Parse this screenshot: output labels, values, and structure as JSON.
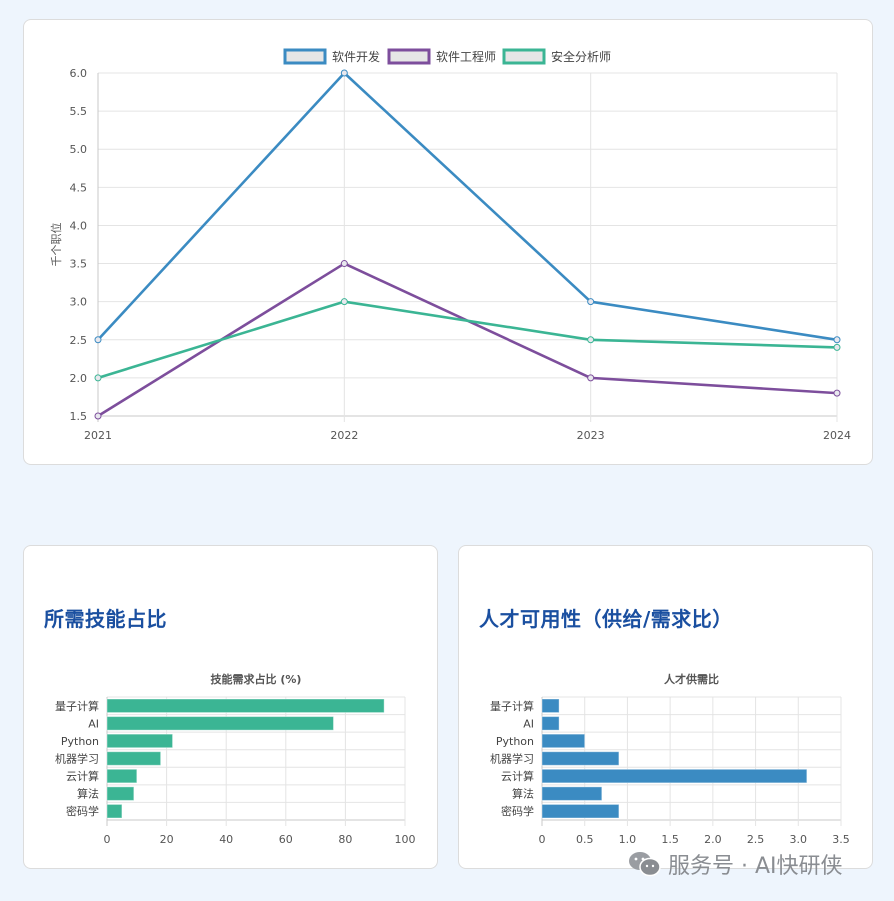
{
  "page": {
    "background": "#eef5fd"
  },
  "top_chart": {
    "legend": [
      {
        "label": "软件开发",
        "color": "#3b8bc2"
      },
      {
        "label": "软件工程师",
        "color": "#7d4e9c"
      },
      {
        "label": "安全分析师",
        "color": "#3bb594"
      }
    ],
    "ylabel": "千个职位",
    "y_ticks": [
      "6.0",
      "5.5",
      "5.0",
      "4.5",
      "4.0",
      "3.5",
      "3.0",
      "2.5",
      "2.0",
      "1.5"
    ],
    "x_ticks": [
      "2021",
      "2022",
      "2023",
      "2024"
    ]
  },
  "left_card": {
    "title": "所需技能占比",
    "chart_title": "技能需求占比 (%)",
    "categories": [
      "量子计算",
      "AI",
      "Python",
      "机器学习",
      "云计算",
      "算法",
      "密码学"
    ],
    "x_ticks": [
      "0",
      "20",
      "40",
      "60",
      "80",
      "100"
    ],
    "bar_color": "#3bb594"
  },
  "right_card": {
    "title": "人才可用性（供给/需求比）",
    "chart_title": "人才供需比",
    "categories": [
      "量子计算",
      "AI",
      "Python",
      "机器学习",
      "云计算",
      "算法",
      "密码学"
    ],
    "x_ticks": [
      "0",
      "0.5",
      "1.0",
      "1.5",
      "2.0",
      "2.5",
      "3.0",
      "3.5"
    ],
    "bar_color": "#3b8bc2"
  },
  "watermark": {
    "text": "服务号 · AI快研侠"
  },
  "chart_data": [
    {
      "type": "line",
      "title": "",
      "x": [
        "2021",
        "2022",
        "2023",
        "2024"
      ],
      "series": [
        {
          "name": "软件开发",
          "values": [
            2.5,
            6.0,
            3.0,
            2.5
          ],
          "color": "#3b8bc2"
        },
        {
          "name": "软件工程师",
          "values": [
            1.5,
            3.5,
            2.0,
            1.8
          ],
          "color": "#7d4e9c"
        },
        {
          "name": "安全分析师",
          "values": [
            2.0,
            3.0,
            2.5,
            2.4
          ],
          "color": "#3bb594"
        }
      ],
      "xlabel": "",
      "ylabel": "千个职位",
      "ylim": [
        1.5,
        6.0
      ],
      "grid": true,
      "legend_position": "top"
    },
    {
      "type": "bar",
      "orientation": "horizontal",
      "title": "技能需求占比 (%)",
      "categories": [
        "量子计算",
        "AI",
        "Python",
        "机器学习",
        "云计算",
        "算法",
        "密码学"
      ],
      "values": [
        93,
        76,
        22,
        18,
        10,
        9,
        5
      ],
      "xlim": [
        0,
        100
      ],
      "grid": true,
      "color": "#3bb594"
    },
    {
      "type": "bar",
      "orientation": "horizontal",
      "title": "人才供需比",
      "categories": [
        "量子计算",
        "AI",
        "Python",
        "机器学习",
        "云计算",
        "算法",
        "密码学"
      ],
      "values": [
        0.2,
        0.2,
        0.5,
        0.9,
        3.1,
        0.7,
        0.9
      ],
      "xlim": [
        0,
        3.5
      ],
      "grid": true,
      "color": "#3b8bc2"
    }
  ]
}
